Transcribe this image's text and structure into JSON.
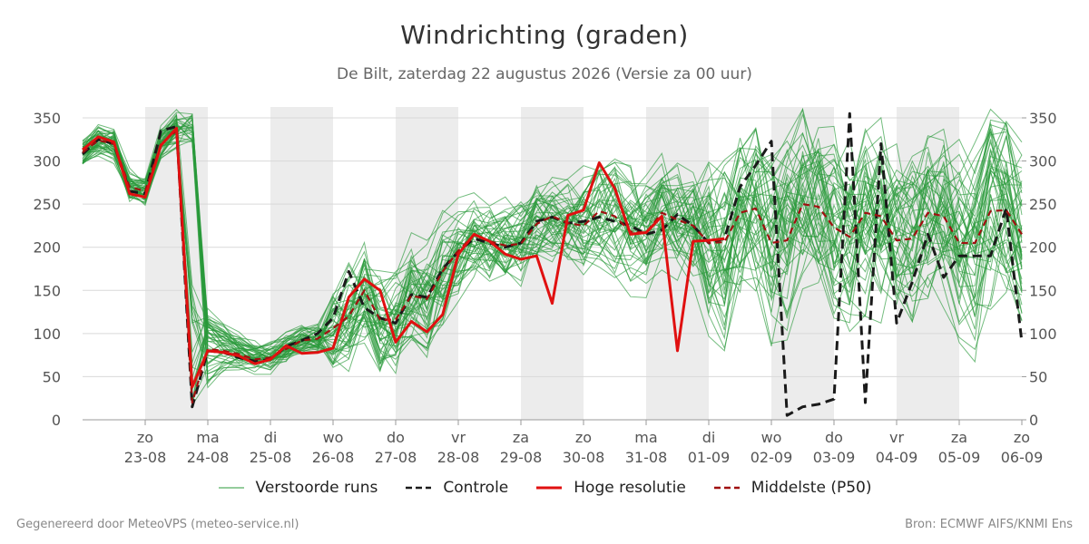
{
  "header": {
    "title": "Windrichting (graden)",
    "subtitle": "De Bilt, zaterdag 22 augustus 2026 (Versie za 00 uur)"
  },
  "footer": {
    "left": "Gegenereerd door MeteoVPS (meteo-service.nl)",
    "right": "Bron: ECMWF AIFS/KNMI Ens"
  },
  "legend": [
    {
      "label": "Verstoorde runs",
      "color": "#2a9a3a",
      "style": "thin"
    },
    {
      "label": "Controle",
      "color": "#1a1a1a",
      "style": "dashed"
    },
    {
      "label": "Hoge resolutie",
      "color": "#e01010",
      "style": "solid"
    },
    {
      "label": "Middelste (P50)",
      "color": "#a01010",
      "style": "dashed"
    }
  ],
  "chart_data": {
    "type": "line",
    "x_unit": "days since 22-08-2026 00:00",
    "xlim": [
      0,
      15
    ],
    "ylim": [
      0,
      360
    ],
    "y_ticks": [
      0,
      50,
      100,
      150,
      200,
      250,
      300,
      350
    ],
    "y_axis_both_sides": true,
    "grid": "horizontal",
    "x_ticks": [
      {
        "x": 1,
        "day": "zo",
        "date": "23-08"
      },
      {
        "x": 2,
        "day": "ma",
        "date": "24-08"
      },
      {
        "x": 3,
        "day": "di",
        "date": "25-08"
      },
      {
        "x": 4,
        "day": "wo",
        "date": "26-08"
      },
      {
        "x": 5,
        "day": "do",
        "date": "27-08"
      },
      {
        "x": 6,
        "day": "vr",
        "date": "28-08"
      },
      {
        "x": 7,
        "day": "za",
        "date": "29-08"
      },
      {
        "x": 8,
        "day": "zo",
        "date": "30-08"
      },
      {
        "x": 9,
        "day": "ma",
        "date": "31-08"
      },
      {
        "x": 10,
        "day": "di",
        "date": "01-09"
      },
      {
        "x": 11,
        "day": "wo",
        "date": "02-09"
      },
      {
        "x": 12,
        "day": "do",
        "date": "03-09"
      },
      {
        "x": 13,
        "day": "vr",
        "date": "04-09"
      },
      {
        "x": 14,
        "day": "za",
        "date": "05-09"
      },
      {
        "x": 15,
        "day": "zo",
        "date": "06-09"
      }
    ],
    "shaded_bands": [
      [
        1,
        2
      ],
      [
        3,
        4
      ],
      [
        5,
        6
      ],
      [
        7,
        8
      ],
      [
        9,
        10
      ],
      [
        11,
        12
      ],
      [
        13,
        14
      ]
    ],
    "colors": {
      "ensemble": "#2a9a3a",
      "control": "#1a1a1a",
      "hires": "#e01010",
      "median": "#a01010",
      "band": "#ececec",
      "grid": "#d9d9d9"
    },
    "series": [
      {
        "name": "Controle",
        "x": [
          0.0,
          0.25,
          0.5,
          0.75,
          1.0,
          1.25,
          1.5,
          1.75,
          2.0,
          2.25,
          2.5,
          2.75,
          3.0,
          3.25,
          3.5,
          3.75,
          4.0,
          4.25,
          4.5,
          4.75,
          5.0,
          5.25,
          5.5,
          5.75,
          6.0,
          6.25,
          6.5,
          6.75,
          7.0,
          7.25,
          7.5,
          7.75,
          8.0,
          8.25,
          8.5,
          8.75,
          9.0,
          9.25,
          9.5,
          9.75,
          10.0,
          10.25,
          10.5,
          10.75,
          11.0,
          11.25,
          11.5,
          11.75,
          12.0,
          12.25,
          12.5,
          12.75,
          13.0,
          13.25,
          13.5,
          13.75,
          14.0,
          14.25,
          14.5,
          14.75,
          15.0
        ],
        "y": [
          308,
          325,
          320,
          265,
          262,
          335,
          340,
          15,
          80,
          78,
          72,
          68,
          70,
          85,
          92,
          100,
          118,
          172,
          130,
          118,
          112,
          145,
          142,
          175,
          195,
          210,
          205,
          200,
          205,
          230,
          235,
          228,
          230,
          235,
          230,
          225,
          215,
          220,
          238,
          225,
          205,
          210,
          270,
          295,
          323,
          5,
          15,
          18,
          24,
          355,
          20,
          320,
          112,
          160,
          215,
          165,
          190,
          190,
          190,
          245,
          90
        ]
      },
      {
        "name": "Hoge resolutie",
        "x": [
          0.0,
          0.25,
          0.5,
          0.75,
          1.0,
          1.25,
          1.5,
          1.75,
          2.0,
          2.25,
          2.5,
          2.75,
          3.0,
          3.25,
          3.5,
          3.75,
          4.0,
          4.25,
          4.5,
          4.75,
          5.0,
          5.25,
          5.5,
          5.75,
          6.0,
          6.25,
          6.5,
          6.75,
          7.0,
          7.25,
          7.5,
          7.75,
          8.0,
          8.25,
          8.5,
          8.75,
          9.0,
          9.25,
          9.5,
          9.75,
          10.0,
          10.25
        ],
        "y": [
          313,
          328,
          322,
          262,
          258,
          318,
          338,
          38,
          80,
          78,
          74,
          65,
          70,
          86,
          77,
          78,
          83,
          142,
          163,
          150,
          90,
          114,
          102,
          122,
          192,
          215,
          207,
          192,
          186,
          190,
          135,
          237,
          243,
          298,
          268,
          215,
          217,
          236,
          80,
          207,
          208,
          210
        ]
      },
      {
        "name": "Middelste (P50)",
        "x": [
          0.0,
          0.25,
          0.5,
          0.75,
          1.0,
          1.25,
          1.5,
          1.75,
          2.0,
          2.25,
          2.5,
          2.75,
          3.0,
          3.25,
          3.5,
          3.75,
          4.0,
          4.25,
          4.5,
          4.75,
          5.0,
          5.25,
          5.5,
          5.75,
          6.0,
          6.25,
          6.5,
          6.75,
          7.0,
          7.25,
          7.5,
          7.75,
          8.0,
          8.25,
          8.5,
          8.75,
          9.0,
          9.25,
          9.5,
          9.75,
          10.0,
          10.25,
          10.5,
          10.75,
          11.0,
          11.25,
          11.5,
          11.75,
          12.0,
          12.25,
          12.5,
          12.75,
          13.0,
          13.25,
          13.5,
          13.75,
          14.0,
          14.25,
          14.5,
          14.75,
          15.0
        ],
        "y": [
          310,
          324,
          320,
          270,
          265,
          320,
          335,
          20,
          82,
          80,
          76,
          70,
          72,
          82,
          92,
          94,
          106,
          120,
          150,
          116,
          116,
          144,
          140,
          172,
          196,
          214,
          207,
          202,
          204,
          227,
          236,
          228,
          225,
          242,
          236,
          218,
          217,
          240,
          232,
          225,
          205,
          206,
          240,
          245,
          205,
          208,
          250,
          247,
          223,
          212,
          240,
          236,
          208,
          210,
          240,
          236,
          205,
          205,
          242,
          243,
          215
        ]
      }
    ],
    "ensemble_count": 50
  }
}
